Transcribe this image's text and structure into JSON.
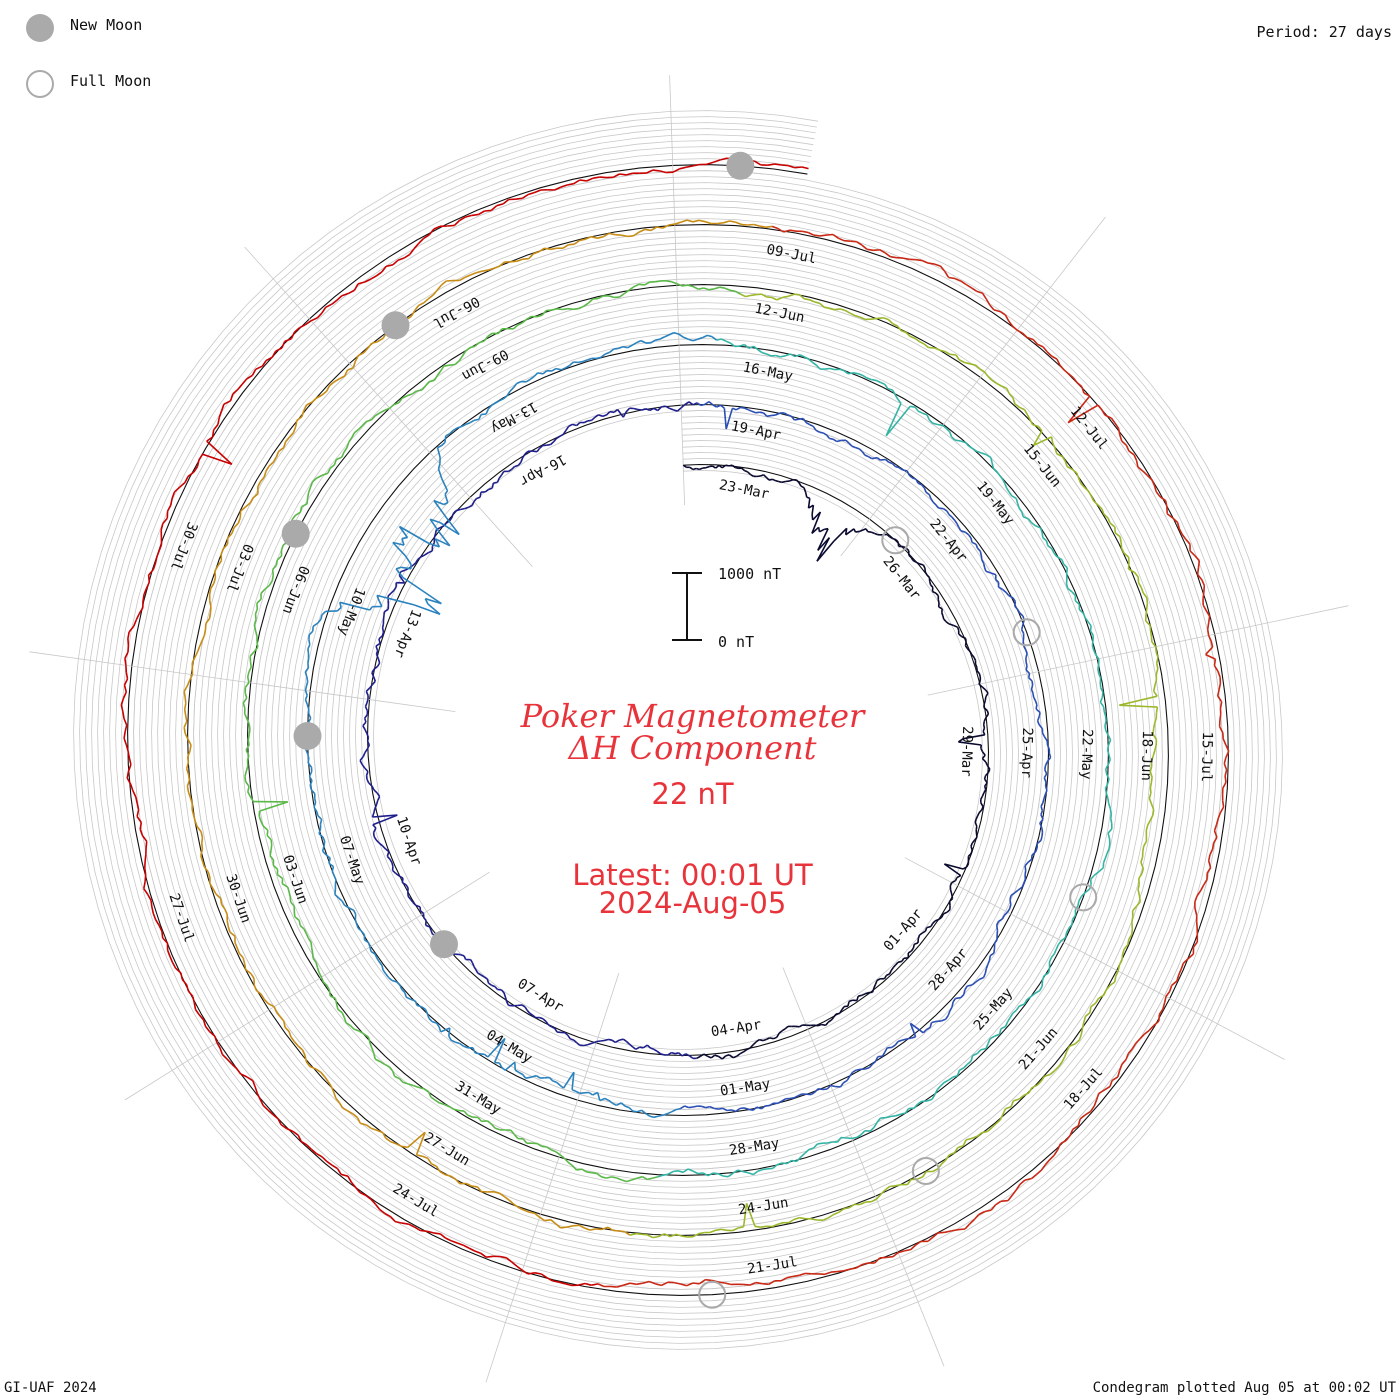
{
  "legend": {
    "new_moon_label": "New Moon",
    "full_moon_label": "Full Moon",
    "new_moon_color": "#aaaaaa",
    "full_moon_color": "#aaaaaa"
  },
  "header": {
    "period": "Period: 27 days"
  },
  "center": {
    "title_line1": "Poker Magnetometer",
    "title_line2": "ΔH Component",
    "value": "22 nT",
    "latest_line1": "Latest: 00:01 UT",
    "latest_line2": "2024-Aug-05",
    "text_color": "#e8333b",
    "scale_top_label": "1000 nT",
    "scale_bottom_label": "0 nT"
  },
  "footer": {
    "credit": "GI-UAF 2024",
    "plotted": "Condegram plotted Aug 05 at 00:02 UT"
  },
  "chart_data": {
    "type": "line",
    "subtype": "condegram-spiral",
    "title": "Poker Magnetometer ΔH Component",
    "period_days": 27,
    "units": "nT",
    "current_value": 22,
    "latest": "2024-08-05 00:01 UT",
    "start_date": "2024-03-22",
    "end_date": "2024-08-05",
    "scale_bar": [
      0,
      1000
    ],
    "grid": true,
    "date_labels": [
      "23-Mar",
      "26-Mar",
      "29-Mar",
      "01-Apr",
      "04-Apr",
      "07-Apr",
      "10-Apr",
      "13-Apr",
      "16-Apr",
      "19-Apr",
      "22-Apr",
      "25-Apr",
      "28-Apr",
      "01-May",
      "04-May",
      "07-May",
      "10-May",
      "13-May",
      "16-May",
      "19-May",
      "22-May",
      "25-May",
      "28-May",
      "31-May",
      "03-Jun",
      "06-Jun",
      "09-Jun",
      "12-Jun",
      "15-Jun",
      "18-Jun",
      "21-Jun",
      "24-Jun",
      "27-Jun",
      "30-Jun",
      "03-Jul",
      "06-Jul",
      "09-Jul",
      "12-Jul",
      "15-Jul",
      "18-Jul",
      "21-Jul",
      "24-Jul",
      "27-Jul",
      "30-Jul"
    ],
    "new_moons": [
      "2024-04-08",
      "2024-05-08",
      "2024-06-06",
      "2024-07-05",
      "2024-08-04"
    ],
    "full_moons": [
      "2024-03-25",
      "2024-04-23",
      "2024-05-23",
      "2024-06-22",
      "2024-07-21"
    ],
    "storm_events": [
      {
        "date": "2024-05-10",
        "peak_excursion_nT": -1700
      },
      {
        "date": "2024-05-11",
        "peak_excursion_nT": -1500
      },
      {
        "date": "2024-03-24",
        "peak_excursion_nT": -700
      }
    ],
    "series_colors": [
      "#0a0a30",
      "#1e1e8c",
      "#2a4eb4",
      "#2a82be",
      "#32b4a4",
      "#5ab848",
      "#9ab82a",
      "#c88c14",
      "#c82814",
      "#c80000"
    ]
  }
}
